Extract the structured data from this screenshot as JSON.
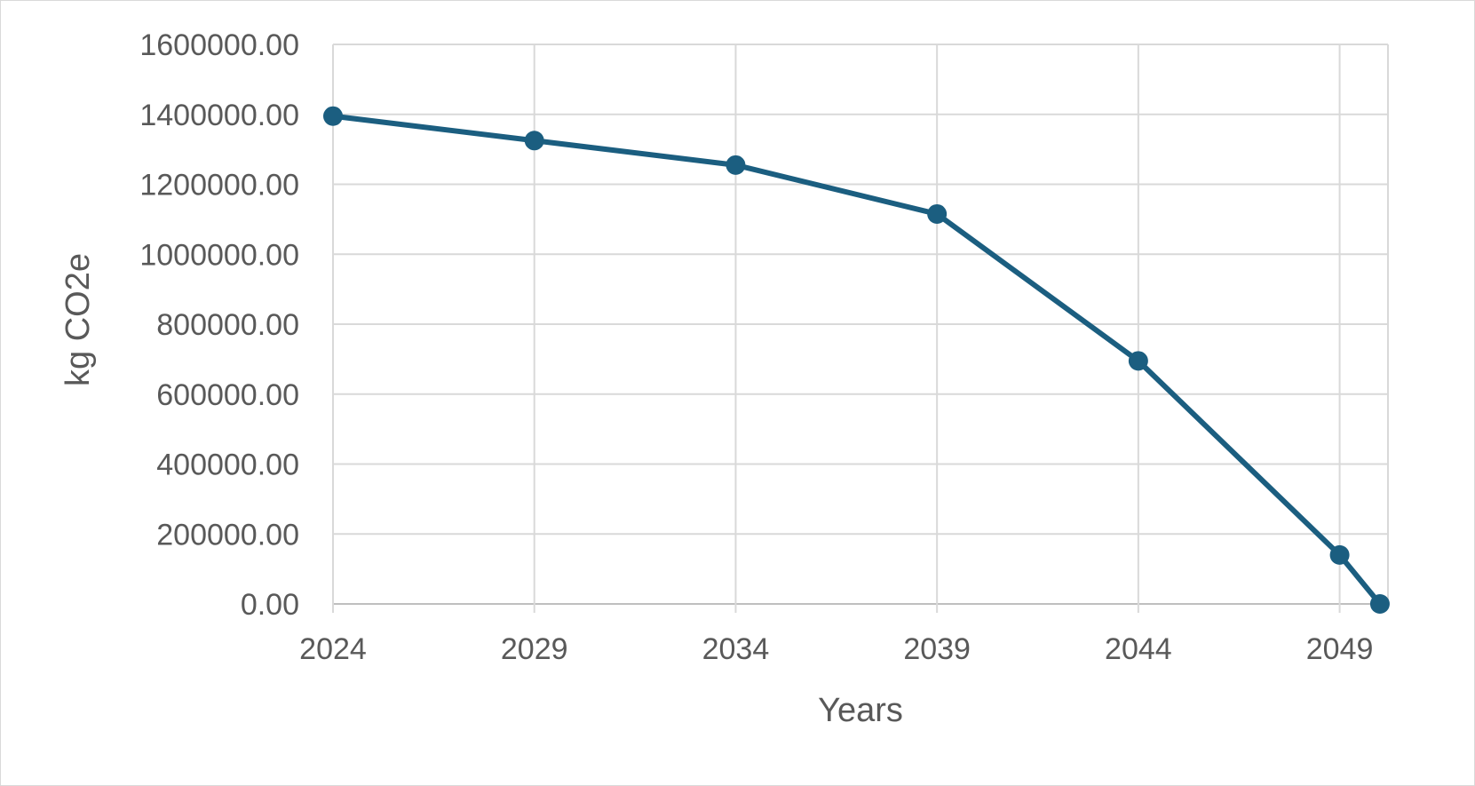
{
  "chart_data": {
    "type": "line",
    "title": "",
    "xlabel": "Years",
    "ylabel": "kg CO2e",
    "x_tick_labels": [
      "2024",
      "2029",
      "2034",
      "2039",
      "2044",
      "2049"
    ],
    "y_tick_labels": [
      "0.00",
      "200000.00",
      "400000.00",
      "600000.00",
      "800000.00",
      "1000000.00",
      "1200000.00",
      "1400000.00",
      "1600000.00"
    ],
    "ylim": [
      0,
      1600000
    ],
    "xlim": [
      2024,
      2050.2
    ],
    "x_ticks": [
      2024,
      2029,
      2034,
      2039,
      2044,
      2049
    ],
    "y_ticks": [
      0,
      200000,
      400000,
      600000,
      800000,
      1000000,
      1200000,
      1400000,
      1600000
    ],
    "grid": true,
    "legend": "none",
    "series": [
      {
        "x": [
          2024,
          2029,
          2034,
          2039,
          2044,
          2049,
          2050
        ],
        "values": [
          1395000,
          1325000,
          1255000,
          1115000,
          695000,
          140000,
          0
        ],
        "color": "#1b5e80"
      }
    ],
    "colors": {
      "line": "#1b5e80",
      "grid": "#d9d9d9",
      "text": "#595959"
    }
  }
}
